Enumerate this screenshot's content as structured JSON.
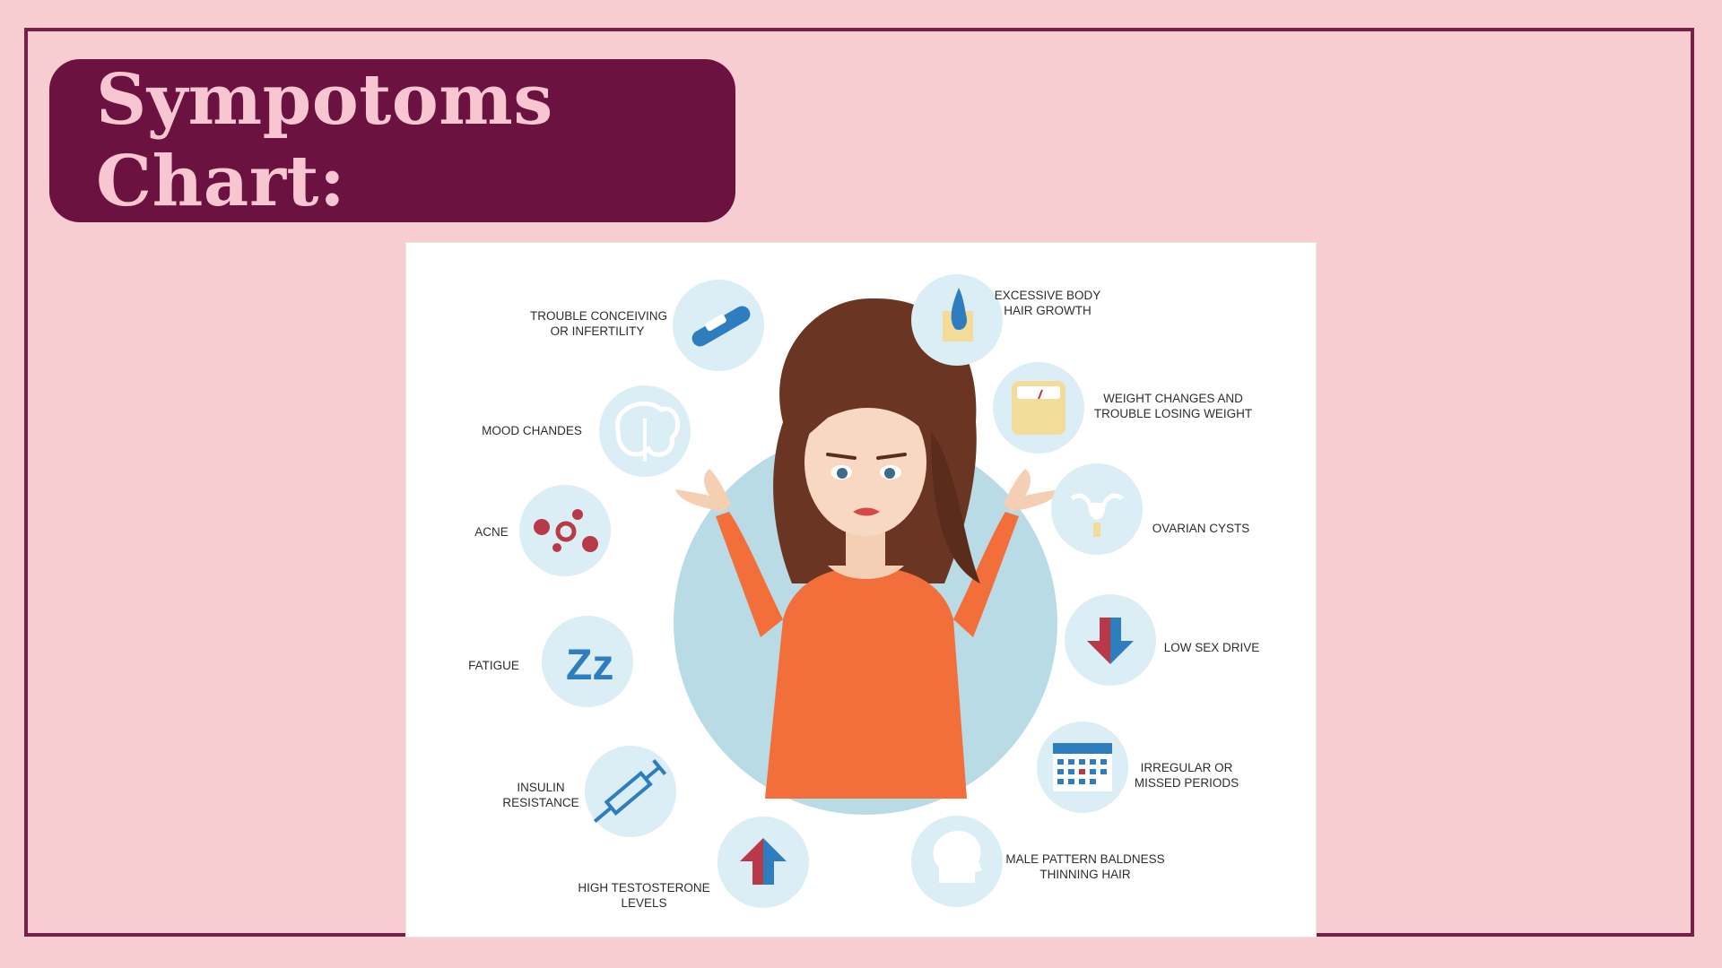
{
  "title": "Sympotoms Chart:",
  "symptoms": {
    "trouble_conceiving": [
      "TROUBLE CONCEIVING",
      "OR INFERTILITY"
    ],
    "mood_changes": [
      "MOOD CHANDES"
    ],
    "acne": [
      "ACNE"
    ],
    "fatigue": [
      "FATIGUE"
    ],
    "insulin_resistance": [
      "INSULIN",
      "RESISTANCE"
    ],
    "high_testosterone": [
      "HIGH TESTOSTERONE",
      "LEVELS"
    ],
    "excessive_hair": [
      "EXCESSIVE BODY",
      "HAIR GROWTH"
    ],
    "weight_changes": [
      "WEIGHT CHANGES AND",
      "TROUBLE LOSING WEIGHT"
    ],
    "ovarian_cysts": [
      "OVARIAN CYSTS"
    ],
    "low_sex_drive": [
      "LOW SEX DRIVE"
    ],
    "irregular_periods": [
      "IRREGULAR OR",
      "MISSED PERIODS"
    ],
    "baldness": [
      "MALE PATTERN BALDNESS",
      "THINNING HAIR"
    ]
  },
  "fatigue_icon_text": "Zz",
  "colors": {
    "background": "#f7cdd1",
    "frame": "#7a1f4c",
    "title_box": "#6b1240",
    "title_text": "#f8c6d0",
    "icon_circle": "#dbedf5",
    "center_circle": "#b9dbe6",
    "icon_blue": "#2e7dbf",
    "icon_red": "#b83a48",
    "shirt": "#f26f3c",
    "hair": "#6a3522"
  }
}
